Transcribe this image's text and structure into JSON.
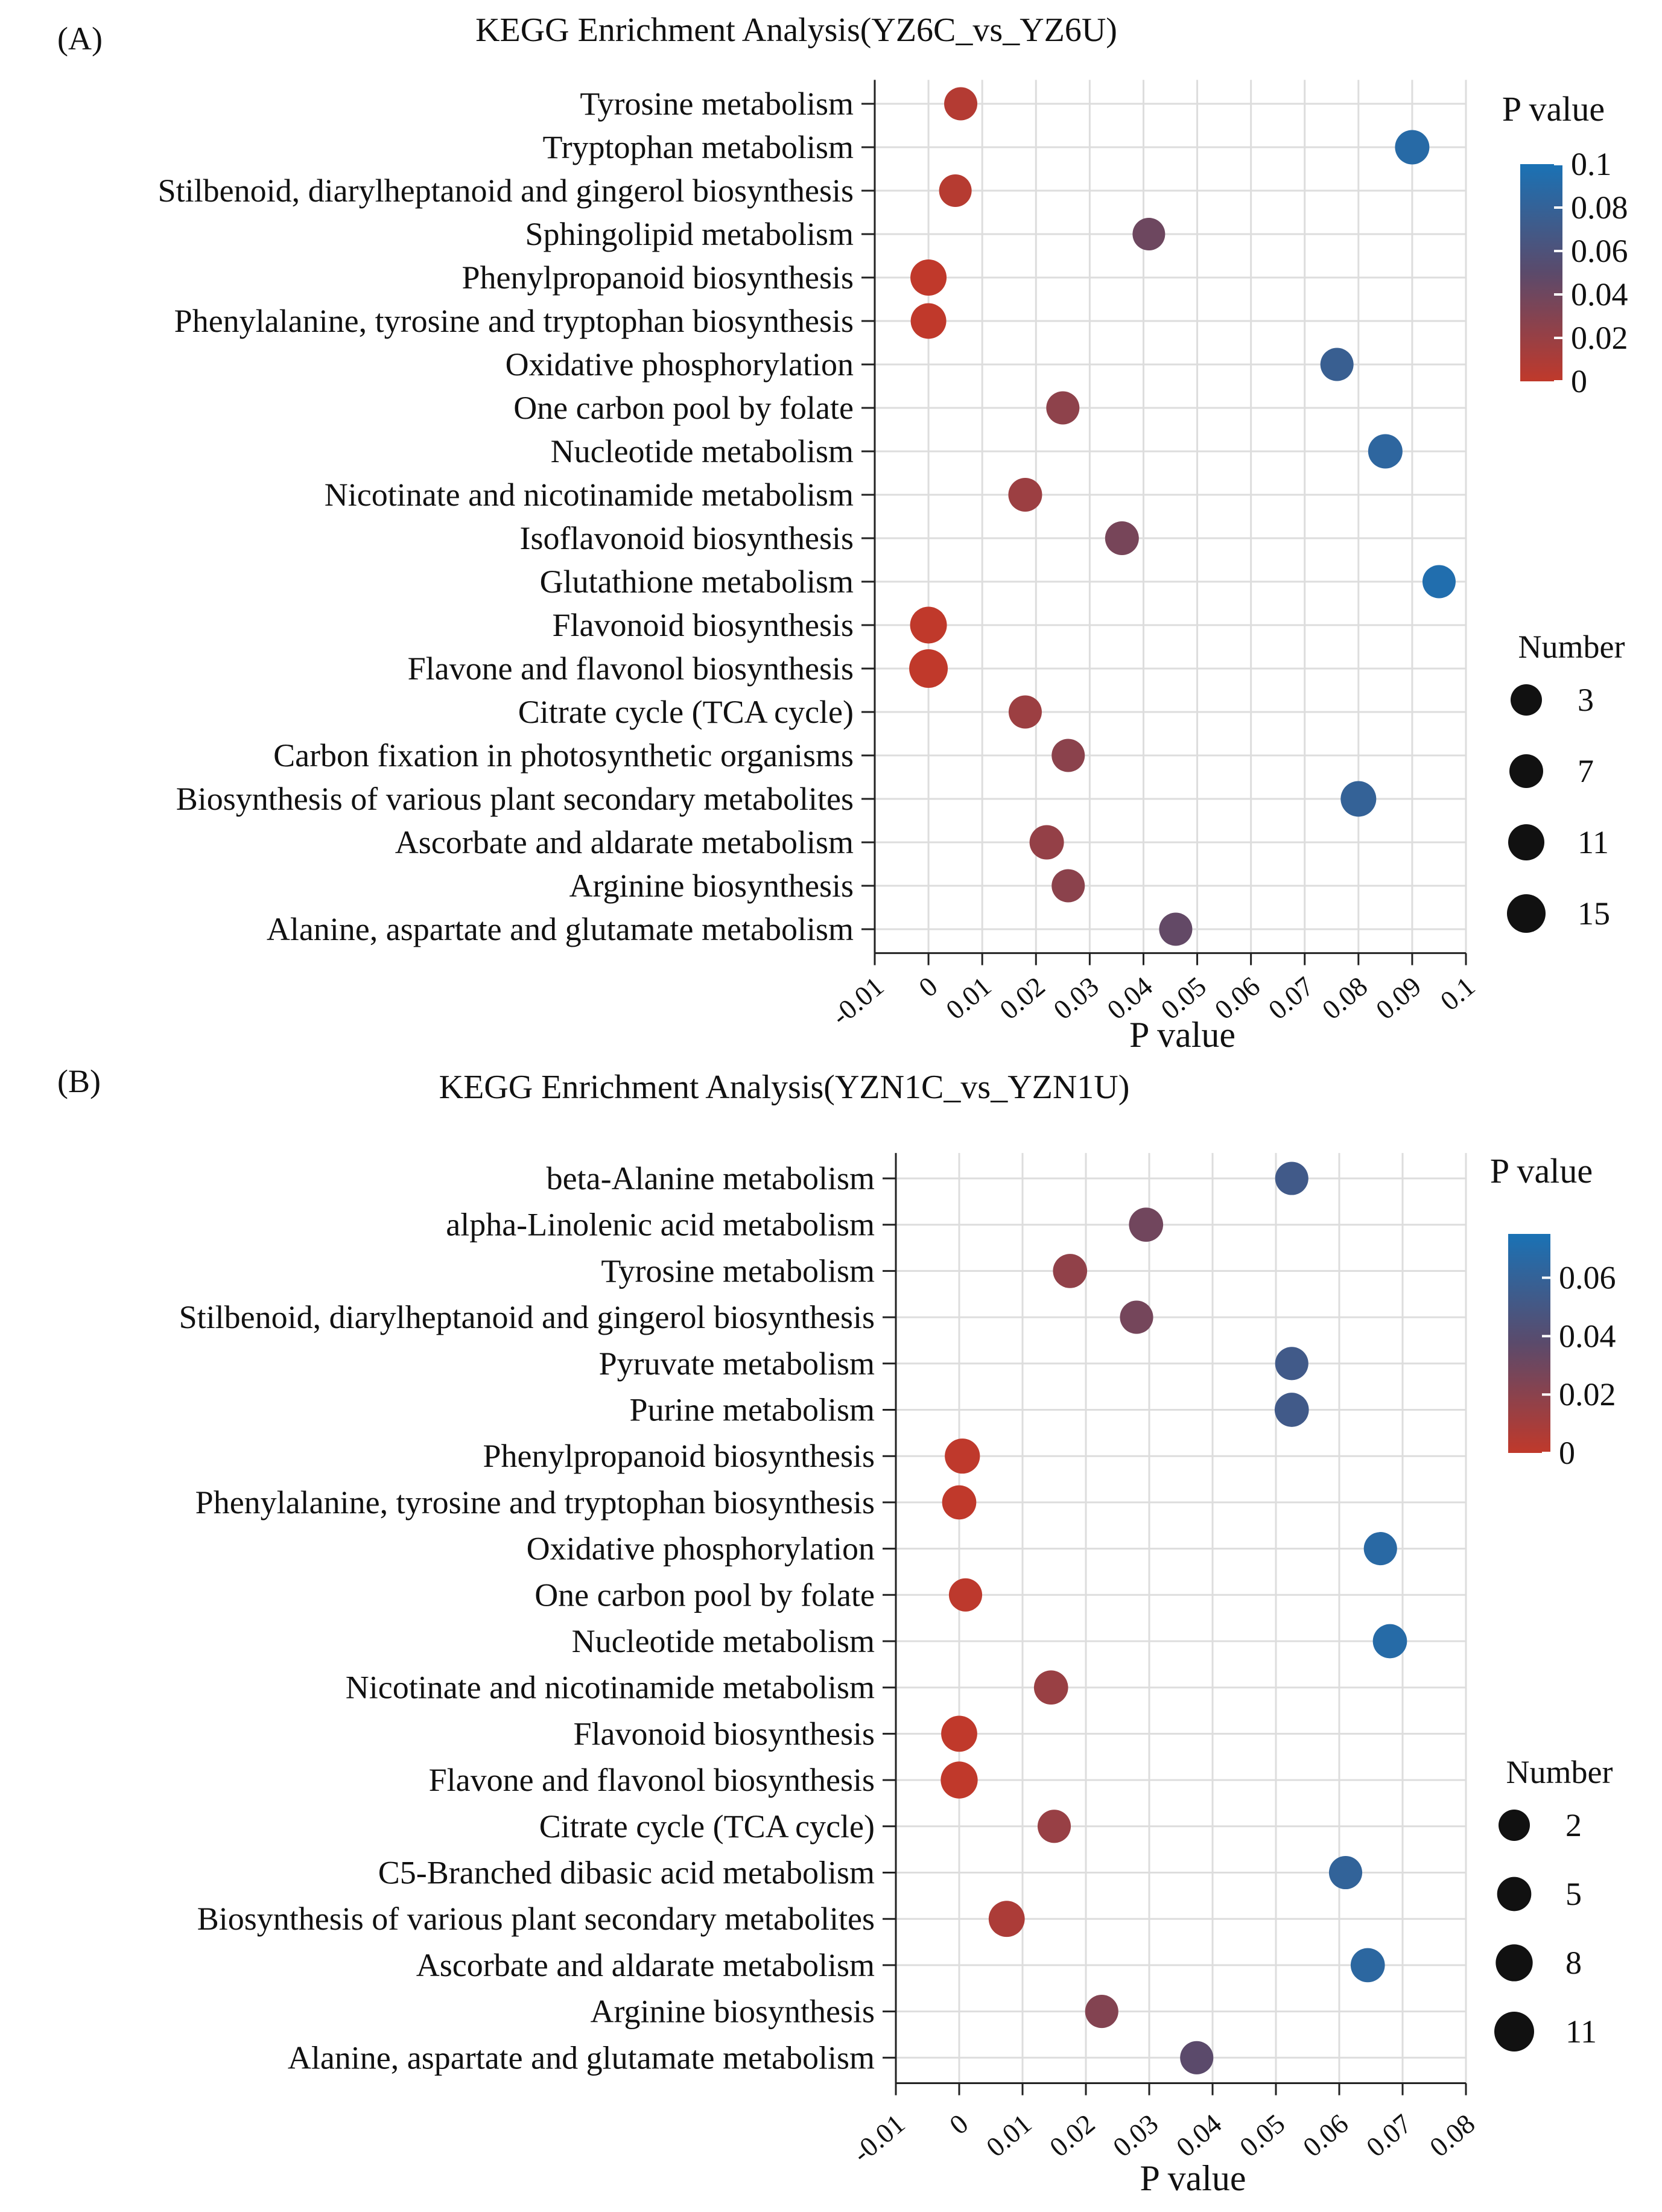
{
  "chart_data": [
    {
      "panel_label": "(A)",
      "type": "scatter",
      "title": "KEGG Enrichment Analysis(YZ6C_vs_YZ6U)",
      "xlabel": "P value",
      "ylabel": "",
      "xlim": [
        -0.01,
        0.1
      ],
      "xticks": [
        -0.01,
        0,
        0.01,
        0.02,
        0.03,
        0.04,
        0.05,
        0.06,
        0.07,
        0.08,
        0.09,
        0.1
      ],
      "xtick_labels": [
        "-0.01",
        "0",
        "0.01",
        "0.02",
        "0.03",
        "0.04",
        "0.05",
        "0.06",
        "0.07",
        "0.08",
        "0.09",
        "0.1"
      ],
      "grid": true,
      "color_scale": {
        "title": "P value",
        "low": "#c0392b",
        "mid": "#5b4a6b",
        "high": "#1a72b5",
        "range": [
          0,
          0.1
        ],
        "tick_labels": [
          "0.1",
          "0.08",
          "0.06",
          "0.04",
          "0.02",
          "0"
        ],
        "tick_values": [
          0.1,
          0.08,
          0.06,
          0.04,
          0.02,
          0
        ]
      },
      "size_legend": {
        "title": "Number",
        "values": [
          3,
          7,
          11,
          15
        ],
        "labels": [
          "3",
          "7",
          "11",
          "15"
        ]
      },
      "pathways": [
        "Tyrosine metabolism",
        "Tryptophan metabolism",
        "Stilbenoid, diarylheptanoid and gingerol biosynthesis",
        "Sphingolipid metabolism",
        "Phenylpropanoid biosynthesis",
        "Phenylalanine, tyrosine and tryptophan biosynthesis",
        "Oxidative phosphorylation",
        "One carbon pool by folate",
        "Nucleotide metabolism",
        "Nicotinate and nicotinamide metabolism",
        "Isoflavonoid biosynthesis",
        "Glutathione metabolism",
        "Flavonoid biosynthesis",
        "Flavone and flavonol biosynthesis",
        "Citrate cycle (TCA cycle)",
        "Carbon fixation in photosynthetic organisms",
        "Biosynthesis of various plant secondary metabolites",
        "Ascorbate and aldarate metabolism",
        "Arginine biosynthesis",
        "Alanine, aspartate and glutamate metabolism"
      ],
      "pvalues": [
        0.006,
        0.09,
        0.005,
        0.041,
        0.0,
        0.0,
        0.076,
        0.025,
        0.085,
        0.018,
        0.036,
        0.095,
        0.0,
        0.0,
        0.018,
        0.026,
        0.08,
        0.022,
        0.026,
        0.046
      ],
      "numbers": [
        6,
        8,
        5,
        5,
        11,
        10,
        6,
        6,
        8,
        7,
        7,
        6,
        12,
        15,
        6,
        6,
        10,
        8,
        6,
        6
      ]
    },
    {
      "panel_label": "(B)",
      "type": "scatter",
      "title": "KEGG Enrichment Analysis(YZN1C_vs_YZN1U)",
      "xlabel": "P value",
      "ylabel": "",
      "xlim": [
        -0.01,
        0.08
      ],
      "xticks": [
        -0.01,
        0,
        0.01,
        0.02,
        0.03,
        0.04,
        0.05,
        0.06,
        0.07,
        0.08
      ],
      "xtick_labels": [
        "-0.01",
        "0",
        "0.01",
        "0.02",
        "0.03",
        "0.04",
        "0.05",
        "0.06",
        "0.07",
        "0.08"
      ],
      "grid": true,
      "color_scale": {
        "title": "P value",
        "low": "#c0392b",
        "mid": "#5b4a6b",
        "high": "#1a72b5",
        "range": [
          0,
          0.075
        ],
        "tick_labels": [
          "0.06",
          "0.04",
          "0.02",
          "0"
        ],
        "tick_values": [
          0.06,
          0.04,
          0.02,
          0
        ]
      },
      "size_legend": {
        "title": "Number",
        "values": [
          2,
          5,
          8,
          11
        ],
        "labels": [
          "2",
          "5",
          "8",
          "11"
        ]
      },
      "pathways": [
        "beta-Alanine metabolism",
        "alpha-Linolenic acid metabolism",
        "Tyrosine metabolism",
        "Stilbenoid, diarylheptanoid and gingerol biosynthesis",
        "Pyruvate metabolism",
        "Purine metabolism",
        "Phenylpropanoid biosynthesis",
        "Phenylalanine, tyrosine and tryptophan biosynthesis",
        "Oxidative phosphorylation",
        "One carbon pool by folate",
        "Nucleotide metabolism",
        "Nicotinate and nicotinamide metabolism",
        "Flavonoid biosynthesis",
        "Flavone and flavonol biosynthesis",
        "Citrate cycle (TCA cycle)",
        "C5-Branched dibasic acid metabolism",
        "Biosynthesis of various plant secondary metabolites",
        "Ascorbate and aldarate metabolism",
        "Arginine biosynthesis",
        "Alanine, aspartate and glutamate metabolism"
      ],
      "pvalues": [
        0.0525,
        0.0295,
        0.0175,
        0.028,
        0.0525,
        0.0525,
        0.0005,
        0.0,
        0.0665,
        0.001,
        0.068,
        0.0145,
        0.0,
        0.0,
        0.015,
        0.061,
        0.0075,
        0.0645,
        0.0225,
        0.0375
      ],
      "numbers": [
        4,
        5,
        5,
        4,
        4,
        5,
        6,
        5,
        4,
        4,
        5,
        5,
        7,
        8,
        4,
        4,
        7,
        5,
        4,
        4
      ]
    }
  ]
}
